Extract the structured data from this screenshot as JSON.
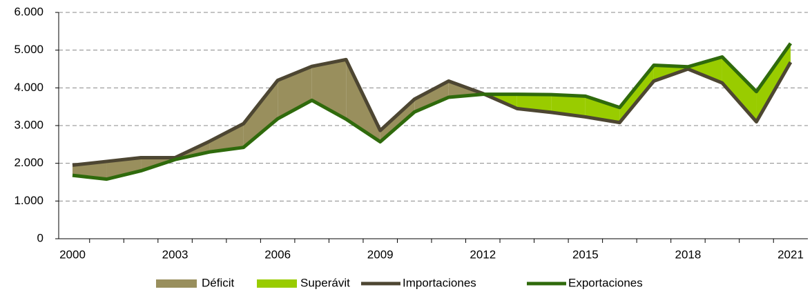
{
  "chart_data": {
    "type": "line",
    "categories": [
      "2000",
      null,
      null,
      "2003",
      null,
      null,
      "2006",
      null,
      null,
      "2009",
      null,
      null,
      "2012",
      null,
      null,
      "2015",
      null,
      null,
      "2018",
      null,
      null,
      "2021"
    ],
    "series": [
      {
        "name": "Importaciones",
        "color": "#4d4632",
        "values": [
          1950,
          2050,
          2150,
          2150,
          2580,
          3050,
          4200,
          4570,
          4750,
          2870,
          3700,
          4180,
          3850,
          3450,
          3350,
          3230,
          3080,
          4180,
          4500,
          4130,
          3100,
          4680
        ]
      },
      {
        "name": "Exportaciones",
        "color": "#2f6a0c",
        "values": [
          1680,
          1580,
          1800,
          2100,
          2300,
          2420,
          3180,
          3670,
          3170,
          2570,
          3360,
          3750,
          3830,
          3830,
          3820,
          3780,
          3480,
          4600,
          4560,
          4820,
          3900,
          5180
        ]
      }
    ],
    "fills": [
      {
        "name": "Déficit",
        "color": "#998f5d"
      },
      {
        "name": "Superávit",
        "color": "#99cc00"
      }
    ],
    "ylim": [
      0,
      6000
    ],
    "yticks": [
      0,
      {
        "value": 1000,
        "label": "1.000"
      },
      {
        "value": 2000,
        "label": "2.000"
      },
      {
        "value": 3000,
        "label": "3.000"
      },
      {
        "value": 4000,
        "label": "4.000"
      },
      {
        "value": 5000,
        "label": "5.000"
      },
      {
        "value": 6000,
        "label": "6.000"
      }
    ],
    "grid": true
  }
}
